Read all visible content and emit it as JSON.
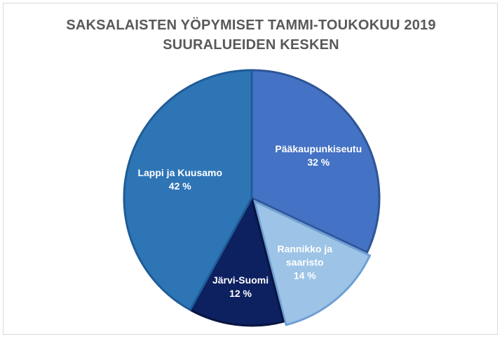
{
  "chart_data": {
    "type": "pie",
    "title_lines": [
      "SAKSALAISTEN YÖPYMISET TAMMI-TOUKOKUU 2019",
      "SUURALUEIDEN KESKEN"
    ],
    "slices": [
      {
        "label_lines": [
          "Pääkaupunkiseutu"
        ],
        "value": 32,
        "value_text": "32 %",
        "color": "#4472c4"
      },
      {
        "label_lines": [
          "Rannikko ja",
          "saaristo"
        ],
        "value": 14,
        "value_text": "14 %",
        "color": "#9dc3e6"
      },
      {
        "label_lines": [
          "Järvi-Suomi"
        ],
        "value": 12,
        "value_text": "12 %",
        "color": "#0d2060"
      },
      {
        "label_lines": [
          "Lappi ja Kuusamo"
        ],
        "value": 42,
        "value_text": "42 %",
        "color": "#2e75b6"
      }
    ],
    "legend": "none",
    "start_angle": "top, clockwise"
  }
}
